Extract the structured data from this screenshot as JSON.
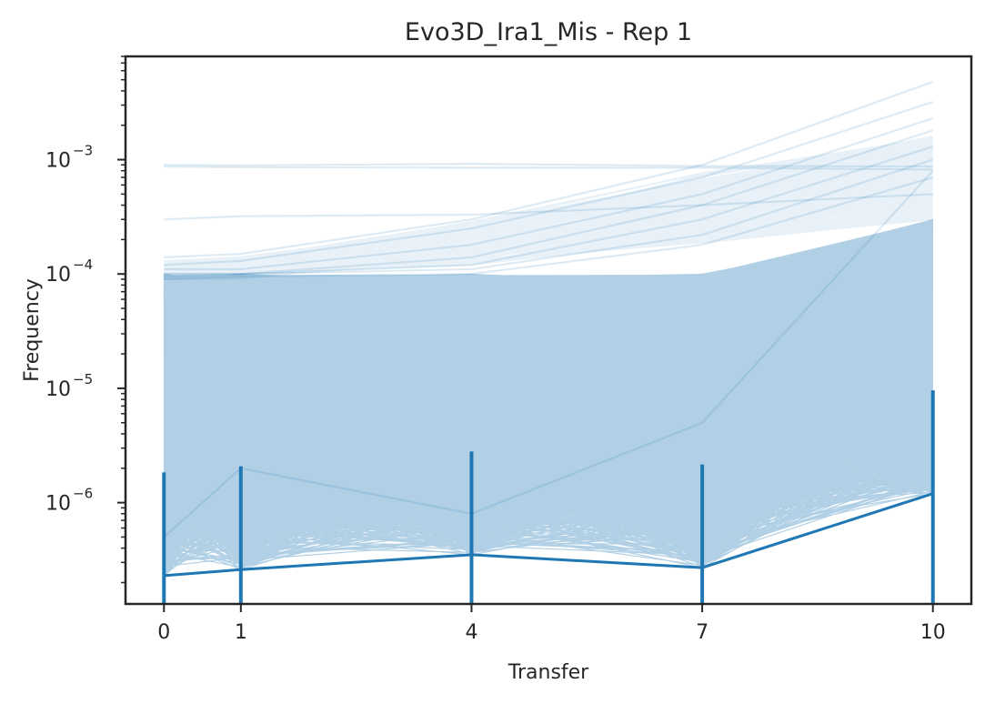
{
  "chart_data": {
    "type": "line",
    "title": "Evo3D_Ira1_Mis - Rep 1",
    "xlabel": "Transfer",
    "ylabel": "Frequency",
    "yscale": "log",
    "x": [
      0,
      1,
      4,
      7,
      10
    ],
    "xticks": [
      0,
      1,
      4,
      7,
      10
    ],
    "xlim": [
      -0.5,
      10.5
    ],
    "ylim": [
      1.3e-07,
      0.008
    ],
    "yticks": [
      {
        "value": 1e-06,
        "base": "10",
        "exp": "−6"
      },
      {
        "value": 1e-05,
        "base": "10",
        "exp": "−5"
      },
      {
        "value": 0.0001,
        "base": "10",
        "exp": "−4"
      },
      {
        "value": 0.001,
        "base": "10",
        "exp": "−3"
      }
    ],
    "grid": false,
    "legend": "none",
    "line_color": "#1f77b4",
    "highlighted_series": [
      {
        "values": [
          0.0009,
          0.00089,
          0.00092,
          0.00088,
          0.00087
        ]
      },
      {
        "values": [
          0.00087,
          0.00086,
          0.00085,
          0.00085,
          0.00082
        ]
      },
      {
        "values": [
          0.0003,
          0.00032,
          0.00033,
          0.0004,
          0.0005
        ]
      },
      {
        "values": [
          0.00014,
          0.00015,
          0.0003,
          0.0009,
          0.0048
        ]
      },
      {
        "values": [
          0.00012,
          0.00013,
          0.00025,
          0.0007,
          0.0032
        ]
      },
      {
        "values": [
          0.00011,
          0.00011,
          0.00018,
          0.0005,
          0.0023
        ]
      },
      {
        "values": [
          0.0001,
          0.0001,
          0.00014,
          0.0004,
          0.0018
        ]
      },
      {
        "values": [
          0.0001,
          0.0001,
          0.00012,
          0.0003,
          0.0013
        ]
      },
      {
        "values": [
          9.5e-05,
          0.0001,
          0.00011,
          0.00022,
          0.001
        ]
      },
      {
        "values": [
          9e-05,
          9.5e-05,
          0.0001,
          0.00018,
          0.0007
        ]
      },
      {
        "values": [
          5e-07,
          2e-06,
          8e-07,
          5e-06,
          0.0008
        ]
      }
    ],
    "bulk": {
      "series_count": 6000,
      "min_freq": 2.3e-07,
      "upper_band": 0.0001
    },
    "floor_values": [
      2.3e-07,
      2.6e-07,
      3.5e-07,
      2.7e-07,
      1.2e-06
    ]
  }
}
